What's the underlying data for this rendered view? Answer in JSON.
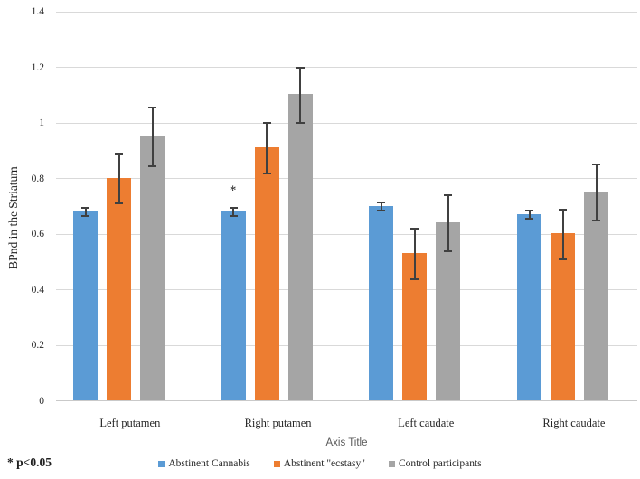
{
  "chart_data": {
    "type": "bar",
    "title": "",
    "ylabel": "BPnd in the Striatum",
    "xlabel": "Axis Title",
    "ylim": [
      0,
      1.4
    ],
    "yticks": [
      0,
      0.2,
      0.4,
      0.6,
      0.8,
      1,
      1.2,
      1.4
    ],
    "ytick_labels": [
      "0",
      "0.2",
      "0.4",
      "0.6",
      "0.8",
      "1",
      "1.2",
      "1.4"
    ],
    "grid": true,
    "legend_position": "bottom",
    "categories": [
      "Left putamen",
      "Right putamen",
      "Left caudate",
      "Right caudate"
    ],
    "series": [
      {
        "name": "Abstinent Cannabis",
        "color": "#5B9BD5",
        "values": [
          0.68,
          0.68,
          0.7,
          0.67
        ],
        "errors": [
          0.015,
          0.015,
          0.015,
          0.015
        ]
      },
      {
        "name": "Abstinent \"ecstasy\"",
        "color": "#ED7D31",
        "values": [
          0.8,
          0.91,
          0.53,
          0.6
        ],
        "errors": [
          0.09,
          0.09,
          0.09,
          0.09
        ]
      },
      {
        "name": "Control participants",
        "color": "#A5A5A5",
        "values": [
          0.95,
          1.1,
          0.64,
          0.75
        ],
        "errors": [
          0.105,
          0.1,
          0.1,
          0.1
        ]
      }
    ],
    "annotations": [
      {
        "text": "*",
        "category_index": 1,
        "series_index": 0,
        "y": 0.79
      }
    ],
    "footnote": "* p<0.05"
  },
  "colors": {
    "gridline": "#D9D9D9",
    "axis_line": "#C9C9C9",
    "error_bar": "#404040",
    "axis_title_text": "#595959",
    "tick_text": "#262626"
  }
}
